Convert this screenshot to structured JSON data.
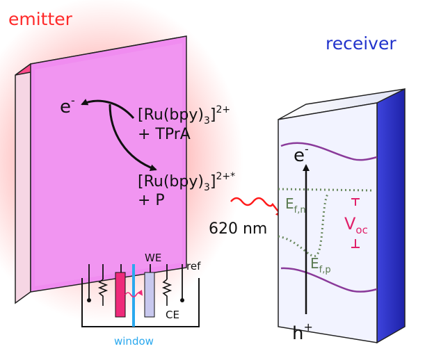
{
  "labels": {
    "emitter": "emitter",
    "receiver": "receiver",
    "electron": "e",
    "electron_sup": "-",
    "complex_top_a": "[Ru(bpy)",
    "complex_top_sub": "3",
    "complex_top_b": "]",
    "complex_top_sup": "2+",
    "complex_top_line2": "+ TPrA",
    "complex_bot_a": "[Ru(bpy)",
    "complex_bot_sub": "3",
    "complex_bot_b": "]",
    "complex_bot_sup": "2+*",
    "complex_bot_line2": "+ P",
    "wavelength": "620 nm",
    "cb_electron": "e",
    "cb_electron_sup": "-",
    "vb_hole": "h",
    "vb_hole_sup": "+",
    "efn_main": "E",
    "efn_sub": "f,n",
    "efp_main": "E",
    "efp_sub": "f,p",
    "voc_main": "V",
    "voc_sub": "oc",
    "cell_we": "WE",
    "cell_ref": "ref",
    "cell_ce": "CE",
    "cell_window": "window"
  },
  "colors": {
    "emitter_label": "#ff2a2a",
    "receiver_label": "#2233cc",
    "emitter_face": "#f08cf0",
    "emitter_glow": "#ff5a5a",
    "receiver_face": "#f2f3ff",
    "receiver_side": "#2a2fd0",
    "band": "#8a3a9a",
    "quasi_fermi": "#6b8a60",
    "voc": "#e0206a",
    "photon": "#ff1a1a",
    "window": "#2aa8ee",
    "we_electrode": "#c8c8ee",
    "emitter_electrode": "#ee2a7a"
  },
  "icons": [
    "curved-arrow-icon",
    "wavy-photon-arrow-icon",
    "resistor-icon"
  ]
}
